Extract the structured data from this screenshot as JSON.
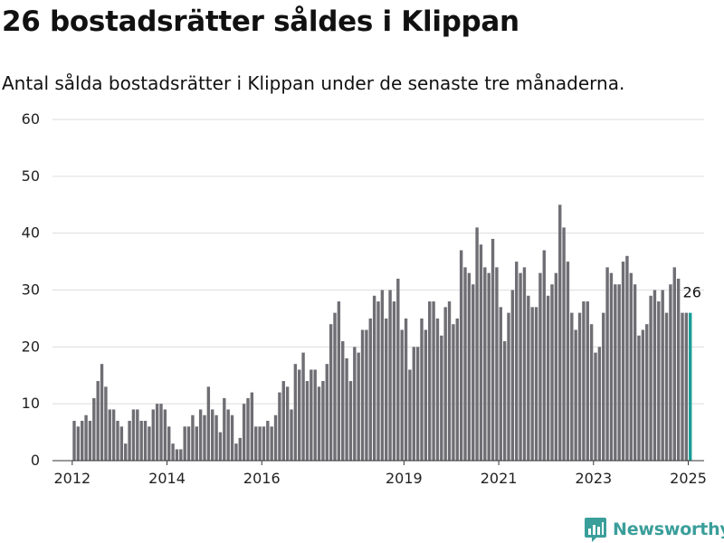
{
  "title": "26 bostadsrätter såldes i Klippan",
  "subtitle": "Antal sålda bostadsrätter i Klippan under de senaste tre månaderna.",
  "brand": {
    "name": "Newsworthy",
    "icon": "newsworthy-logo-icon",
    "color": "#3a9e9a"
  },
  "colors": {
    "bar": "#6e6e74",
    "highlight": "#1a9e96",
    "grid": "#dddddd",
    "axis": "#333333"
  },
  "chart_data": {
    "type": "bar",
    "title": "26 bostadsrätter såldes i Klippan",
    "subtitle": "Antal sålda bostadsrätter i Klippan under de senaste tre månaderna.",
    "xlabel": "",
    "ylabel": "",
    "ylim": [
      0,
      60
    ],
    "yticks": [
      0,
      10,
      20,
      30,
      40,
      50,
      60
    ],
    "xlim": [
      "2011-08",
      "2025-05"
    ],
    "xticks": [
      "2012",
      "2014",
      "2016",
      "2019",
      "2021",
      "2023",
      "2025"
    ],
    "grid": true,
    "legend": "none",
    "highlight_last": true,
    "last_value_label": "26",
    "series": [
      {
        "values": [
          {
            "x": "2012-01",
            "y": 7
          },
          {
            "x": "2012-02",
            "y": 6
          },
          {
            "x": "2012-03",
            "y": 7
          },
          {
            "x": "2012-04",
            "y": 8
          },
          {
            "x": "2012-05",
            "y": 7
          },
          {
            "x": "2012-06",
            "y": 11
          },
          {
            "x": "2012-07",
            "y": 14
          },
          {
            "x": "2012-08",
            "y": 17
          },
          {
            "x": "2012-09",
            "y": 13
          },
          {
            "x": "2012-10",
            "y": 9
          },
          {
            "x": "2012-11",
            "y": 9
          },
          {
            "x": "2012-12",
            "y": 7
          },
          {
            "x": "2013-01",
            "y": 6
          },
          {
            "x": "2013-02",
            "y": 3
          },
          {
            "x": "2013-03",
            "y": 7
          },
          {
            "x": "2013-04",
            "y": 9
          },
          {
            "x": "2013-05",
            "y": 9
          },
          {
            "x": "2013-06",
            "y": 7
          },
          {
            "x": "2013-07",
            "y": 7
          },
          {
            "x": "2013-08",
            "y": 6
          },
          {
            "x": "2013-09",
            "y": 9
          },
          {
            "x": "2013-10",
            "y": 10
          },
          {
            "x": "2013-11",
            "y": 10
          },
          {
            "x": "2013-12",
            "y": 9
          },
          {
            "x": "2014-01",
            "y": 6
          },
          {
            "x": "2014-02",
            "y": 3
          },
          {
            "x": "2014-03",
            "y": 2
          },
          {
            "x": "2014-04",
            "y": 2
          },
          {
            "x": "2014-05",
            "y": 6
          },
          {
            "x": "2014-06",
            "y": 6
          },
          {
            "x": "2014-07",
            "y": 8
          },
          {
            "x": "2014-08",
            "y": 6
          },
          {
            "x": "2014-09",
            "y": 9
          },
          {
            "x": "2014-10",
            "y": 8
          },
          {
            "x": "2014-11",
            "y": 13
          },
          {
            "x": "2014-12",
            "y": 9
          },
          {
            "x": "2015-01",
            "y": 8
          },
          {
            "x": "2015-02",
            "y": 5
          },
          {
            "x": "2015-03",
            "y": 11
          },
          {
            "x": "2015-04",
            "y": 9
          },
          {
            "x": "2015-05",
            "y": 8
          },
          {
            "x": "2015-06",
            "y": 3
          },
          {
            "x": "2015-07",
            "y": 4
          },
          {
            "x": "2015-08",
            "y": 10
          },
          {
            "x": "2015-09",
            "y": 11
          },
          {
            "x": "2015-10",
            "y": 12
          },
          {
            "x": "2015-11",
            "y": 6
          },
          {
            "x": "2015-12",
            "y": 6
          },
          {
            "x": "2016-01",
            "y": 6
          },
          {
            "x": "2016-02",
            "y": 7
          },
          {
            "x": "2016-03",
            "y": 6
          },
          {
            "x": "2016-04",
            "y": 8
          },
          {
            "x": "2016-05",
            "y": 12
          },
          {
            "x": "2016-06",
            "y": 14
          },
          {
            "x": "2016-07",
            "y": 13
          },
          {
            "x": "2016-08",
            "y": 9
          },
          {
            "x": "2016-09",
            "y": 17
          },
          {
            "x": "2016-10",
            "y": 16
          },
          {
            "x": "2016-11",
            "y": 19
          },
          {
            "x": "2016-12",
            "y": 14
          },
          {
            "x": "2017-01",
            "y": 16
          },
          {
            "x": "2017-02",
            "y": 16
          },
          {
            "x": "2017-03",
            "y": 13
          },
          {
            "x": "2017-04",
            "y": 14
          },
          {
            "x": "2017-05",
            "y": 17
          },
          {
            "x": "2017-06",
            "y": 24
          },
          {
            "x": "2017-07",
            "y": 26
          },
          {
            "x": "2017-08",
            "y": 28
          },
          {
            "x": "2017-09",
            "y": 21
          },
          {
            "x": "2017-10",
            "y": 18
          },
          {
            "x": "2017-11",
            "y": 14
          },
          {
            "x": "2017-12",
            "y": 20
          },
          {
            "x": "2018-01",
            "y": 19
          },
          {
            "x": "2018-02",
            "y": 23
          },
          {
            "x": "2018-03",
            "y": 23
          },
          {
            "x": "2018-04",
            "y": 25
          },
          {
            "x": "2018-05",
            "y": 29
          },
          {
            "x": "2018-06",
            "y": 28
          },
          {
            "x": "2018-07",
            "y": 30
          },
          {
            "x": "2018-08",
            "y": 25
          },
          {
            "x": "2018-09",
            "y": 30
          },
          {
            "x": "2018-10",
            "y": 28
          },
          {
            "x": "2018-11",
            "y": 32
          },
          {
            "x": "2018-12",
            "y": 23
          },
          {
            "x": "2019-01",
            "y": 25
          },
          {
            "x": "2019-02",
            "y": 16
          },
          {
            "x": "2019-03",
            "y": 20
          },
          {
            "x": "2019-04",
            "y": 20
          },
          {
            "x": "2019-05",
            "y": 25
          },
          {
            "x": "2019-06",
            "y": 23
          },
          {
            "x": "2019-07",
            "y": 28
          },
          {
            "x": "2019-08",
            "y": 28
          },
          {
            "x": "2019-09",
            "y": 25
          },
          {
            "x": "2019-10",
            "y": 22
          },
          {
            "x": "2019-11",
            "y": 27
          },
          {
            "x": "2019-12",
            "y": 28
          },
          {
            "x": "2020-01",
            "y": 24
          },
          {
            "x": "2020-02",
            "y": 25
          },
          {
            "x": "2020-03",
            "y": 37
          },
          {
            "x": "2020-04",
            "y": 34
          },
          {
            "x": "2020-05",
            "y": 33
          },
          {
            "x": "2020-06",
            "y": 31
          },
          {
            "x": "2020-07",
            "y": 41
          },
          {
            "x": "2020-08",
            "y": 38
          },
          {
            "x": "2020-09",
            "y": 34
          },
          {
            "x": "2020-10",
            "y": 33
          },
          {
            "x": "2020-11",
            "y": 39
          },
          {
            "x": "2020-12",
            "y": 34
          },
          {
            "x": "2021-01",
            "y": 27
          },
          {
            "x": "2021-02",
            "y": 21
          },
          {
            "x": "2021-03",
            "y": 26
          },
          {
            "x": "2021-04",
            "y": 30
          },
          {
            "x": "2021-05",
            "y": 35
          },
          {
            "x": "2021-06",
            "y": 33
          },
          {
            "x": "2021-07",
            "y": 34
          },
          {
            "x": "2021-08",
            "y": 29
          },
          {
            "x": "2021-09",
            "y": 27
          },
          {
            "x": "2021-10",
            "y": 27
          },
          {
            "x": "2021-11",
            "y": 33
          },
          {
            "x": "2021-12",
            "y": 37
          },
          {
            "x": "2022-01",
            "y": 29
          },
          {
            "x": "2022-02",
            "y": 31
          },
          {
            "x": "2022-03",
            "y": 33
          },
          {
            "x": "2022-04",
            "y": 45
          },
          {
            "x": "2022-05",
            "y": 41
          },
          {
            "x": "2022-06",
            "y": 35
          },
          {
            "x": "2022-07",
            "y": 26
          },
          {
            "x": "2022-08",
            "y": 23
          },
          {
            "x": "2022-09",
            "y": 26
          },
          {
            "x": "2022-10",
            "y": 28
          },
          {
            "x": "2022-11",
            "y": 28
          },
          {
            "x": "2022-12",
            "y": 24
          },
          {
            "x": "2023-01",
            "y": 19
          },
          {
            "x": "2023-02",
            "y": 20
          },
          {
            "x": "2023-03",
            "y": 26
          },
          {
            "x": "2023-04",
            "y": 34
          },
          {
            "x": "2023-05",
            "y": 33
          },
          {
            "x": "2023-06",
            "y": 31
          },
          {
            "x": "2023-07",
            "y": 31
          },
          {
            "x": "2023-08",
            "y": 35
          },
          {
            "x": "2023-09",
            "y": 36
          },
          {
            "x": "2023-10",
            "y": 33
          },
          {
            "x": "2023-11",
            "y": 31
          },
          {
            "x": "2023-12",
            "y": 22
          },
          {
            "x": "2024-01",
            "y": 23
          },
          {
            "x": "2024-02",
            "y": 24
          },
          {
            "x": "2024-03",
            "y": 29
          },
          {
            "x": "2024-04",
            "y": 30
          },
          {
            "x": "2024-05",
            "y": 28
          },
          {
            "x": "2024-06",
            "y": 30
          },
          {
            "x": "2024-07",
            "y": 26
          },
          {
            "x": "2024-08",
            "y": 31
          },
          {
            "x": "2024-09",
            "y": 34
          },
          {
            "x": "2024-10",
            "y": 32
          },
          {
            "x": "2024-11",
            "y": 26
          },
          {
            "x": "2024-12",
            "y": 26
          },
          {
            "x": "2025-01",
            "y": 26
          }
        ]
      }
    ]
  }
}
